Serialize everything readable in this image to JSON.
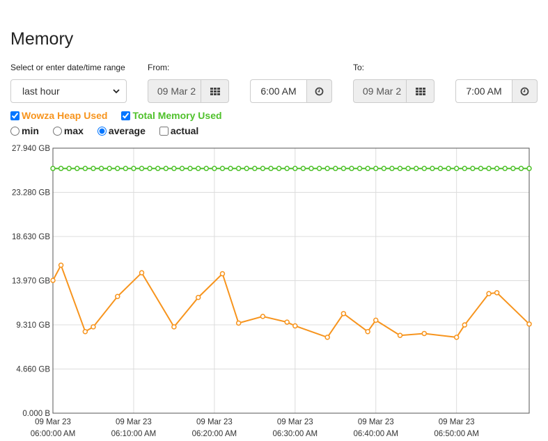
{
  "title": "Memory",
  "range": {
    "label": "Select or enter date/time range",
    "selected": "last hour"
  },
  "from": {
    "label": "From:",
    "date": "09 Mar 2",
    "time": "6:00 AM"
  },
  "to": {
    "label": "To:",
    "date": "09 Mar 2",
    "time": "7:00 AM"
  },
  "series_toggles": [
    {
      "label": "Wowza Heap Used",
      "checked": true,
      "color": "#f7941d"
    },
    {
      "label": "Total Memory Used",
      "checked": true,
      "color": "#4fc12b"
    }
  ],
  "modes": [
    {
      "label": "min",
      "checked": false
    },
    {
      "label": "max",
      "checked": false
    },
    {
      "label": "average",
      "checked": true
    },
    {
      "label": "actual",
      "checked": false,
      "kind": "checkbox"
    }
  ],
  "icons": {
    "calendar": "calendar-grid-icon",
    "clock": "clock-icon",
    "dropdown": "chevron-down-icon"
  },
  "chart_data": {
    "type": "line",
    "ylim": [
      0,
      27.94
    ],
    "xlim_minutes": [
      0,
      59
    ],
    "y_ticks": [
      {
        "value": 0,
        "label": "0.000 B"
      },
      {
        "value": 4.66,
        "label": "4.660 GB"
      },
      {
        "value": 9.31,
        "label": "9.310 GB"
      },
      {
        "value": 13.97,
        "label": "13.970 GB"
      },
      {
        "value": 18.63,
        "label": "18.630 GB"
      },
      {
        "value": 23.28,
        "label": "23.280 GB"
      },
      {
        "value": 27.94,
        "label": "27.940 GB"
      }
    ],
    "x_ticks": [
      {
        "minute": 0,
        "date": "09 Mar 23",
        "time": "06:00:00 AM"
      },
      {
        "minute": 10,
        "date": "09 Mar 23",
        "time": "06:10:00 AM"
      },
      {
        "minute": 20,
        "date": "09 Mar 23",
        "time": "06:20:00 AM"
      },
      {
        "minute": 30,
        "date": "09 Mar 23",
        "time": "06:30:00 AM"
      },
      {
        "minute": 40,
        "date": "09 Mar 23",
        "time": "06:40:00 AM"
      },
      {
        "minute": 50,
        "date": "09 Mar 23",
        "time": "06:50:00 AM"
      }
    ],
    "grid": true,
    "series": [
      {
        "name": "Total Memory Used",
        "color": "#4fc12b",
        "constant_value": 25.8,
        "point_count": 60
      },
      {
        "name": "Wowza Heap Used",
        "color": "#f7941d",
        "points": [
          [
            0,
            14.0
          ],
          [
            1,
            15.6
          ],
          [
            4,
            8.6
          ],
          [
            5,
            9.1
          ],
          [
            8,
            12.3
          ],
          [
            11,
            14.8
          ],
          [
            15,
            9.1
          ],
          [
            18,
            12.2
          ],
          [
            21,
            14.7
          ],
          [
            23,
            9.5
          ],
          [
            26,
            10.2
          ],
          [
            29,
            9.6
          ],
          [
            30,
            9.2
          ],
          [
            34,
            8.0
          ],
          [
            36,
            10.5
          ],
          [
            39,
            8.6
          ],
          [
            40,
            9.8
          ],
          [
            43,
            8.2
          ],
          [
            46,
            8.4
          ],
          [
            50,
            8.0
          ],
          [
            51,
            9.3
          ],
          [
            54,
            12.6
          ],
          [
            55,
            12.7
          ],
          [
            59,
            9.4
          ]
        ]
      }
    ]
  }
}
